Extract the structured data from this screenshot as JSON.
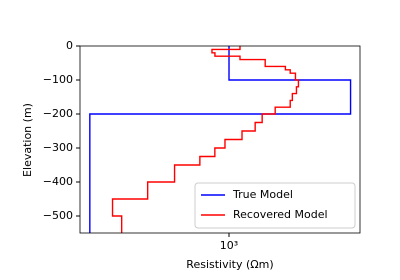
{
  "chart_data": {
    "type": "line",
    "xscale": "log",
    "xlabel": "Resistivity (Ωm)",
    "ylabel": "Elevation (m)",
    "xlim": [
      150,
      5300
    ],
    "ylim": [
      -550,
      0
    ],
    "xticks": [
      {
        "value": 1000,
        "label": "10³"
      }
    ],
    "yticks": [
      0,
      {
        "value": -100,
        "label": "−100"
      },
      {
        "value": -200,
        "label": "−200"
      },
      {
        "value": -300,
        "label": "−300"
      },
      {
        "value": -400,
        "label": "−400"
      },
      {
        "value": -500,
        "label": "−500"
      }
    ],
    "legend": "lower right",
    "series": [
      {
        "name": "True Model",
        "color": "#0000ff",
        "x": [
          1000,
          1000,
          4700,
          4700,
          170,
          170
        ],
        "y": [
          0,
          -100,
          -100,
          -200,
          -200,
          -550
        ]
      },
      {
        "name": "Recovered Model",
        "color": "#ff0000",
        "x": [
          1150,
          1150,
          805,
          805,
          836,
          836,
          1150,
          1150,
          1585,
          1585,
          2050,
          2050,
          2180,
          2180,
          2330,
          2330,
          2420,
          2420,
          2360,
          2360,
          2240,
          2240,
          2180,
          2180,
          1800,
          1800,
          1525,
          1525,
          1395,
          1395,
          1180,
          1180,
          950,
          950,
          835,
          835,
          690,
          690,
          500,
          500,
          355,
          355,
          227,
          227,
          255,
          255
        ],
        "y": [
          0,
          -10,
          -10,
          -20,
          -20,
          -30,
          -30,
          -40,
          -40,
          -60,
          -60,
          -70,
          -70,
          -80,
          -80,
          -100,
          -100,
          -120,
          -120,
          -140,
          -140,
          -160,
          -160,
          -180,
          -180,
          -200,
          -200,
          -225,
          -225,
          -250,
          -250,
          -275,
          -275,
          -300,
          -300,
          -325,
          -325,
          -350,
          -350,
          -400,
          -400,
          -450,
          -450,
          -500,
          -500,
          -550
        ]
      }
    ]
  }
}
